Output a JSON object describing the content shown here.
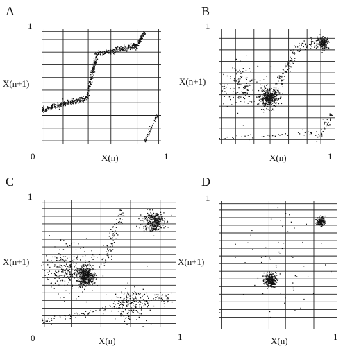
{
  "chart_data": [
    {
      "panel": "A",
      "type": "scatter",
      "xlabel": "X(n)",
      "ylabel": "X(n+1)",
      "x_start_label": "0",
      "x_end_label": "1",
      "y_end_label": "1",
      "xlim": [
        0,
        1
      ],
      "ylim": [
        0,
        1
      ],
      "grid": true,
      "point_color": "#111111",
      "segments": [
        {
          "x": [
            0.0,
            0.38
          ],
          "y": [
            0.3,
            0.4
          ],
          "n": 260,
          "spread": 0.012
        },
        {
          "x": [
            0.38,
            0.46
          ],
          "y": [
            0.4,
            0.78
          ],
          "n": 140,
          "spread": 0.015
        },
        {
          "x": [
            0.46,
            0.8
          ],
          "y": [
            0.78,
            0.86
          ],
          "n": 240,
          "spread": 0.012
        },
        {
          "x": [
            0.8,
            0.86
          ],
          "y": [
            0.86,
            0.97
          ],
          "n": 80,
          "spread": 0.01
        },
        {
          "x": [
            0.86,
            0.97
          ],
          "y": [
            0.02,
            0.25
          ],
          "n": 60,
          "spread": 0.01
        }
      ],
      "clusters": []
    },
    {
      "panel": "B",
      "type": "scatter",
      "xlabel": "X(n)",
      "ylabel": "X(n+1)",
      "x_start_label": "",
      "x_end_label": "1",
      "y_end_label": "1",
      "xlim": [
        0,
        1
      ],
      "ylim": [
        0,
        1
      ],
      "grid": true,
      "point_color": "#111111",
      "segments": [
        {
          "x": [
            0.48,
            0.66
          ],
          "y": [
            0.45,
            0.82
          ],
          "n": 80,
          "spread": 0.03
        },
        {
          "x": [
            0.66,
            0.85
          ],
          "y": [
            0.82,
            0.9
          ],
          "n": 50,
          "spread": 0.02
        },
        {
          "x": [
            0.0,
            0.85
          ],
          "y": [
            0.05,
            0.1
          ],
          "n": 40,
          "spread": 0.01
        },
        {
          "x": [
            0.85,
            0.97
          ],
          "y": [
            0.05,
            0.25
          ],
          "n": 40,
          "spread": 0.02
        }
      ],
      "clusters": [
        {
          "cx": 0.43,
          "cy": 0.4,
          "sd": 0.04,
          "n": 380
        },
        {
          "cx": 0.9,
          "cy": 0.88,
          "sd": 0.025,
          "n": 180
        },
        {
          "cx": 0.2,
          "cy": 0.5,
          "sd": 0.1,
          "n": 140
        }
      ]
    },
    {
      "panel": "C",
      "type": "scatter",
      "xlabel": "X(n)",
      "ylabel": "X(n+1)",
      "x_start_label": "0",
      "x_end_label": "1",
      "y_end_label": "1",
      "xlim": [
        0,
        1
      ],
      "ylim": [
        0,
        1
      ],
      "grid": true,
      "point_color": "#111111",
      "segments": [
        {
          "x": [
            0.46,
            0.6
          ],
          "y": [
            0.5,
            0.92
          ],
          "n": 80,
          "spread": 0.03
        },
        {
          "x": [
            0.0,
            0.55
          ],
          "y": [
            0.05,
            0.15
          ],
          "n": 60,
          "spread": 0.015
        },
        {
          "x": [
            0.55,
            0.95
          ],
          "y": [
            0.15,
            0.25
          ],
          "n": 100,
          "spread": 0.03
        }
      ],
      "clusters": [
        {
          "cx": 0.33,
          "cy": 0.4,
          "sd": 0.035,
          "n": 420
        },
        {
          "cx": 0.83,
          "cy": 0.83,
          "sd": 0.04,
          "n": 320
        },
        {
          "cx": 0.2,
          "cy": 0.45,
          "sd": 0.09,
          "n": 280
        },
        {
          "cx": 0.65,
          "cy": 0.18,
          "sd": 0.07,
          "n": 140
        }
      ]
    },
    {
      "panel": "D",
      "type": "scatter",
      "xlabel": "X(n)",
      "ylabel": "X(n+1)",
      "x_start_label": "",
      "x_end_label": "1",
      "y_end_label": "1",
      "xlim": [
        0,
        1
      ],
      "ylim": [
        0,
        1
      ],
      "grid": true,
      "point_color": "#111111",
      "segments": [],
      "clusters": [
        {
          "cx": 0.43,
          "cy": 0.38,
          "sd": 0.025,
          "n": 280
        },
        {
          "cx": 0.86,
          "cy": 0.84,
          "sd": 0.018,
          "n": 160
        },
        {
          "cx": 0.55,
          "cy": 0.55,
          "sd": 0.25,
          "n": 70
        }
      ]
    }
  ]
}
